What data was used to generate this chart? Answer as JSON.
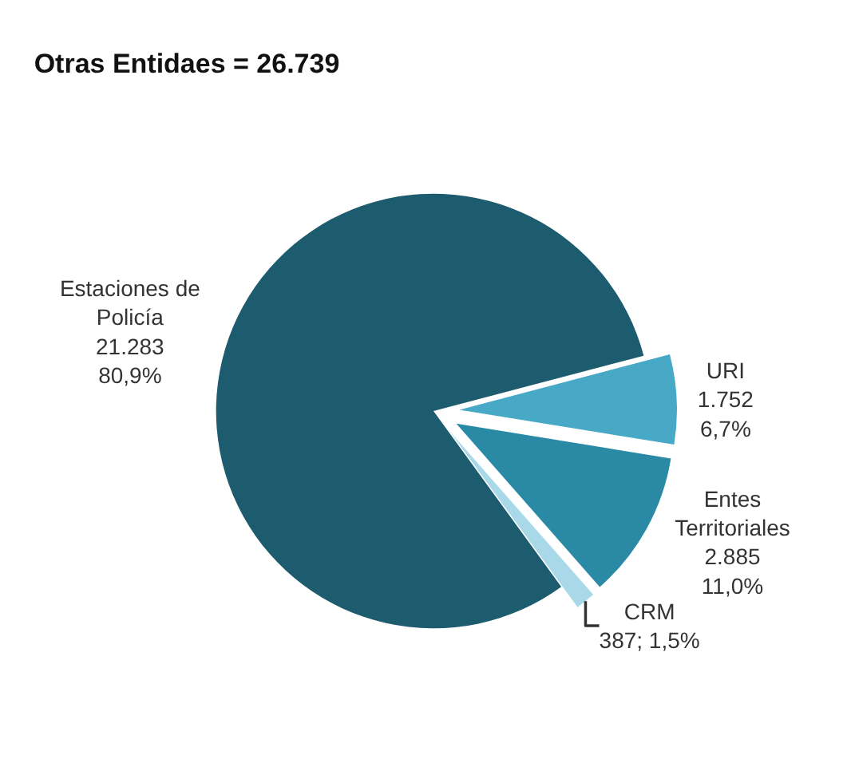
{
  "chart_data": {
    "type": "pie",
    "title": "Otras Entidaes = 26.739",
    "categories": [
      "Estaciones de\nPolicía",
      "URI",
      "Entes\nTerritoriales",
      "CRM"
    ],
    "values": [
      21283,
      1752,
      2885,
      387
    ],
    "value_labels": [
      "21.283\n80,9%",
      "1.752\n6,7%",
      "2.885\n11,0%",
      "387; 1,5%"
    ],
    "colors": [
      "#1d5b6e",
      "#47a9c6",
      "#2a8aa5",
      "#a9d9e8"
    ],
    "legend": false
  }
}
